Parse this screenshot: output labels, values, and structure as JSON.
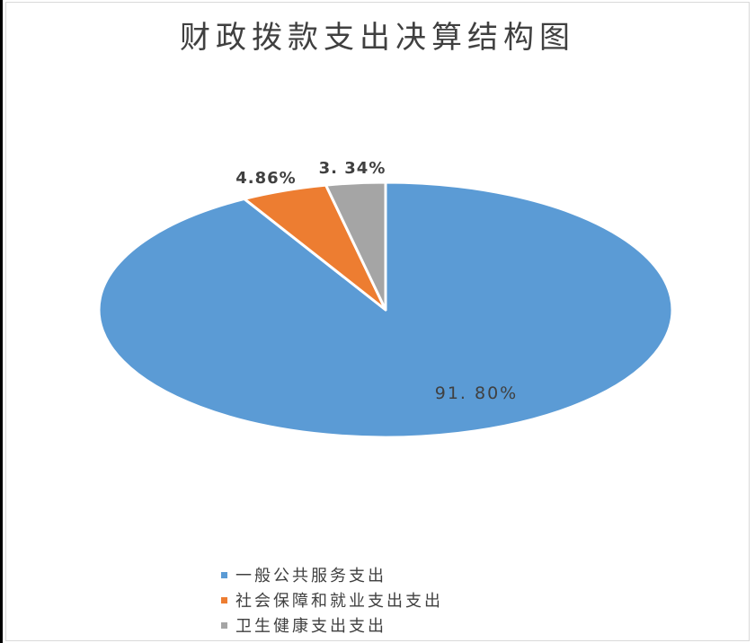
{
  "chart_data": {
    "type": "pie",
    "title": "财政拨款支出决算结构图",
    "slices": [
      {
        "label": "一般公共服务支出",
        "value": 91.8,
        "display": "91. 80%",
        "color": "#5b9bd5"
      },
      {
        "label": "社会保障和就业支出支出",
        "value": 4.86,
        "display": "4.86%",
        "color": "#ed7d31"
      },
      {
        "label": "卫生健康支出支出",
        "value": 3.34,
        "display": "3. 34%",
        "color": "#a5a5a5"
      }
    ],
    "start_angle": "12 o'clock",
    "direction": "clockwise",
    "legend_position": "bottom"
  }
}
